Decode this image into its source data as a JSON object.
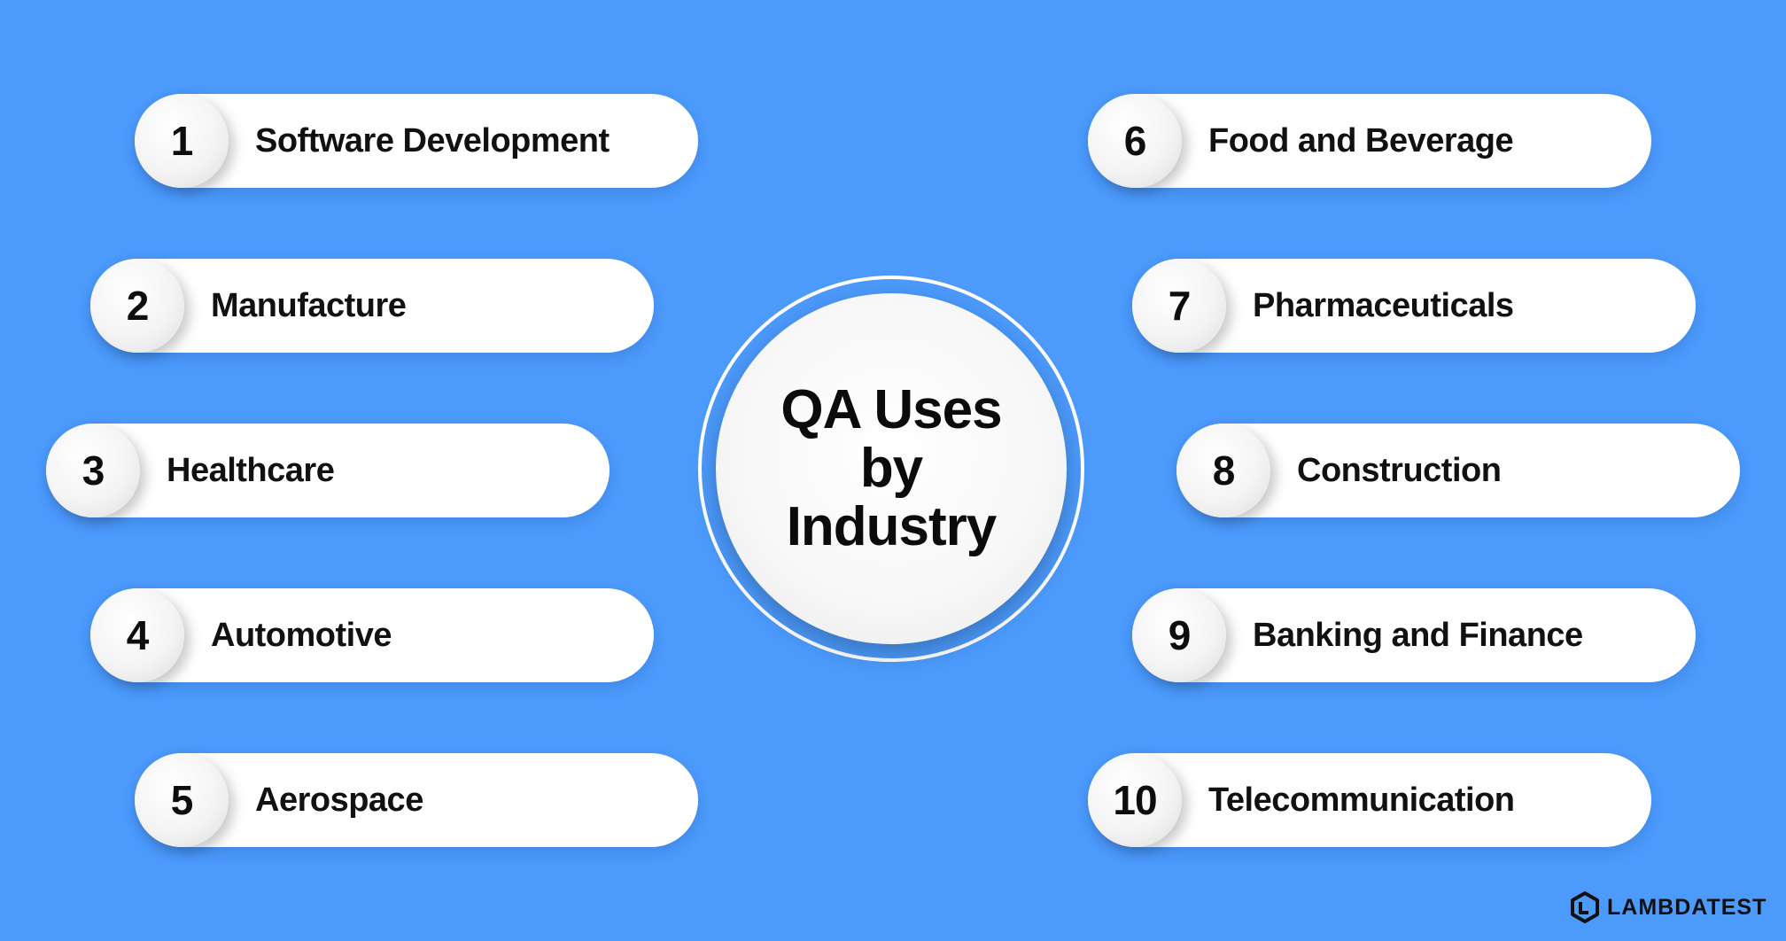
{
  "title": "QA Uses by Industry",
  "industries": [
    {
      "number": "1",
      "label": "Software Development"
    },
    {
      "number": "2",
      "label": "Manufacture"
    },
    {
      "number": "3",
      "label": "Healthcare"
    },
    {
      "number": "4",
      "label": "Automotive"
    },
    {
      "number": "5",
      "label": "Aerospace"
    },
    {
      "number": "6",
      "label": "Food and Beverage"
    },
    {
      "number": "7",
      "label": "Pharmaceuticals"
    },
    {
      "number": "8",
      "label": "Construction"
    },
    {
      "number": "9",
      "label": "Banking and Finance"
    },
    {
      "number": "10",
      "label": "Telecommunication"
    }
  ],
  "brand": {
    "name": "LAMBDATEST",
    "icon": "lambdatest-logo-icon"
  },
  "colors": {
    "background": "#4b9afc",
    "pill": "#ffffff",
    "text": "#111111"
  }
}
